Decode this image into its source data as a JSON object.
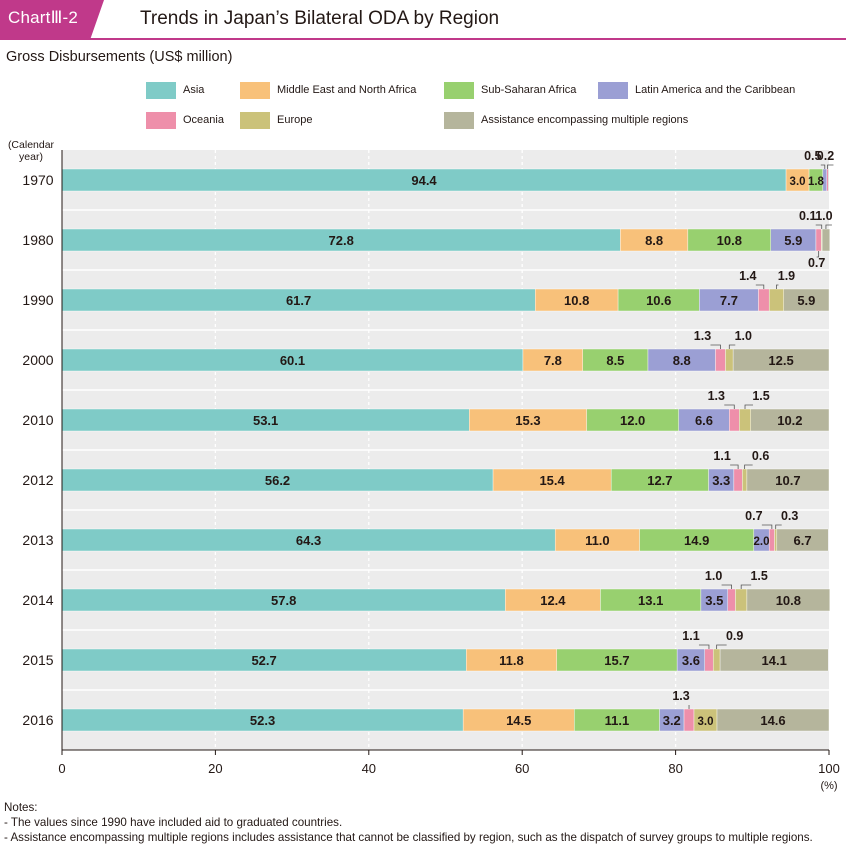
{
  "header": {
    "label": "ChartⅢ-2",
    "title": "Trends in Japan’s Bilateral ODA by Region"
  },
  "subtitle": "Gross Disbursements (US$ million)",
  "colors": {
    "accent": "#c0398a",
    "asia": "#7fcbc7",
    "mena": "#f8c17a",
    "ssa": "#98d06f",
    "lac": "#9b9fd4",
    "oceania": "#ee8faa",
    "europe": "#cbc27a",
    "multi": "#b5b59c"
  },
  "chart_data": {
    "type": "bar",
    "orientation": "horizontal-stacked-100",
    "title": "Trends in Japan’s Bilateral ODA by Region",
    "ylabel": "(Calendar year)",
    "xlabel": "(%)",
    "xlim": [
      0,
      100
    ],
    "xticks": [
      "0",
      "20",
      "40",
      "60",
      "80",
      "100"
    ],
    "categories": [
      "1970",
      "1980",
      "1990",
      "2000",
      "2010",
      "2012",
      "2013",
      "2014",
      "2015",
      "2016"
    ],
    "series": [
      {
        "name": "Asia",
        "color": "#7fcbc7",
        "values": [
          94.4,
          72.8,
          61.7,
          60.1,
          53.1,
          56.2,
          64.3,
          57.8,
          52.7,
          52.3
        ],
        "labels": [
          "94.4",
          "72.8",
          "61.7",
          "60.1",
          "53.1",
          "56.2",
          "64.3",
          "57.8",
          "52.7",
          "52.3"
        ]
      },
      {
        "name": "Middle East and North Africa",
        "color": "#f8c17a",
        "values": [
          3.0,
          8.8,
          10.8,
          7.8,
          15.3,
          15.4,
          11.0,
          12.4,
          11.8,
          14.5
        ],
        "labels": [
          "3.0",
          "8.8",
          "10.8",
          "7.8",
          "15.3",
          "15.4",
          "11.0",
          "12.4",
          "11.8",
          "14.5"
        ]
      },
      {
        "name": "Sub-Saharan Africa",
        "color": "#98d06f",
        "values": [
          1.8,
          10.8,
          10.6,
          8.5,
          12.0,
          12.7,
          14.9,
          13.1,
          15.7,
          11.1
        ],
        "labels": [
          "1.8",
          "10.8",
          "10.6",
          "8.5",
          "12.0",
          "12.7",
          "14.9",
          "13.1",
          "15.7",
          "11.1"
        ]
      },
      {
        "name": "Latin America and the Caribbean",
        "color": "#9b9fd4",
        "values": [
          0.5,
          5.9,
          7.7,
          8.8,
          6.6,
          3.3,
          2.0,
          3.5,
          3.6,
          3.2
        ],
        "labels": [
          "0.5",
          "5.9",
          "7.7",
          "8.8",
          "6.6",
          "3.3",
          "2.0",
          "3.5",
          "3.6",
          "3.2"
        ]
      },
      {
        "name": "Oceania",
        "color": "#ee8faa",
        "values": [
          0.2,
          0.7,
          1.4,
          1.3,
          1.3,
          1.1,
          0.7,
          1.0,
          1.1,
          1.3
        ],
        "labels": [
          "0.2",
          "0.7",
          "1.4",
          "1.3",
          "1.3",
          "1.1",
          "0.7",
          "1.0",
          "1.1",
          "1.3"
        ]
      },
      {
        "name": "Europe",
        "color": "#cbc27a",
        "values": [
          0.0,
          0.1,
          1.9,
          1.0,
          1.5,
          0.6,
          0.3,
          1.5,
          0.9,
          3.0
        ],
        "labels": [
          "",
          "0.1",
          "1.9",
          "1.0",
          "1.5",
          "0.6",
          "0.3",
          "1.5",
          "0.9",
          "3.0"
        ]
      },
      {
        "name": "Assistance encompassing multiple regions",
        "color": "#b5b59c",
        "values": [
          0.1,
          1.0,
          5.9,
          12.5,
          10.2,
          10.7,
          6.7,
          10.8,
          14.1,
          14.6
        ],
        "labels": [
          "",
          "1.0",
          "5.9",
          "12.5",
          "10.2",
          "10.7",
          "6.7",
          "10.8",
          "14.1",
          "14.6"
        ]
      }
    ]
  },
  "axis": {
    "y_caption_line1": "(Calendar",
    "y_caption_line2": "year)",
    "x_unit": "(%)"
  },
  "notes": {
    "heading": "Notes:",
    "items": [
      "- The values since 1990 have included aid to graduated countries.",
      "- Assistance encompassing multiple regions includes assistance that cannot be classified by region, such as the dispatch of survey groups to multiple regions."
    ]
  }
}
